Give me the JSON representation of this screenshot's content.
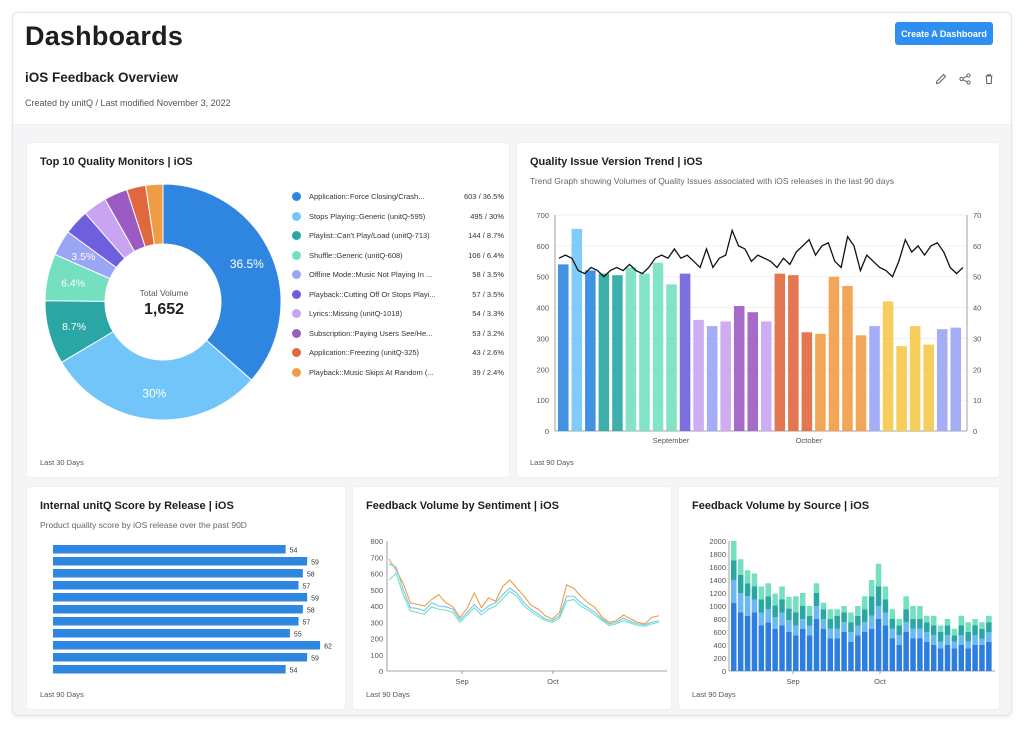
{
  "header": {
    "title": "Dashboards",
    "create_button": "Create A Dashboard",
    "dashboard_name": "iOS Feedback Overview",
    "created": "Created by unitQ / Last modified November 3, 2022"
  },
  "colors": {
    "accent": "#2e8ff0",
    "series": [
      "#2e86e0",
      "#72c5f8",
      "#2aa6a4",
      "#74e0c0",
      "#9aa5f5",
      "#6d5fde",
      "#c9a4f2",
      "#9c5bc2",
      "#e0683f",
      "#ef9d45"
    ]
  },
  "cards": {
    "top10": {
      "title": "Top 10 Quality Monitors | iOS",
      "center_label": "Total Volume",
      "center_value": "1,652",
      "footer": "Last 30 Days",
      "items": [
        {
          "label": "Application::Force Closing/Crash...",
          "value": "603 / 36.5%",
          "color": "#2e86e0"
        },
        {
          "label": "Stops Playing::Generic (unitQ-595)",
          "value": "495 / 30%",
          "color": "#72c5f8"
        },
        {
          "label": "Playlist::Can't Play/Load (unitQ-713)",
          "value": "144 / 8.7%",
          "color": "#2aa6a4"
        },
        {
          "label": "Shuffle::Generic (unitQ-608)",
          "value": "106 / 6.4%",
          "color": "#74e0c0"
        },
        {
          "label": "Offline Mode::Music Not Playing In ...",
          "value": "58 / 3.5%",
          "color": "#9aa5f5"
        },
        {
          "label": "Playback::Cutting Off Or Stops Playi...",
          "value": "57 / 3.5%",
          "color": "#6d5fde"
        },
        {
          "label": "Lyrics::Missing (unitQ-1018)",
          "value": "54 / 3.3%",
          "color": "#c9a4f2"
        },
        {
          "label": "Subscription::Paying Users See/He...",
          "value": "53 / 3.2%",
          "color": "#9c5bc2"
        },
        {
          "label": "Application::Freezing (unitQ-325)",
          "value": "43 / 2.6%",
          "color": "#e0683f"
        },
        {
          "label": "Playback::Music Skips At Random (...",
          "value": "39 / 2.4%",
          "color": "#ef9d45"
        }
      ],
      "slice_labels": [
        "36.5%",
        "30%",
        "8.7%",
        "6.4%",
        "3.5%"
      ]
    },
    "trend": {
      "title": "Quality Issue Version Trend | iOS",
      "subtitle": "Trend Graph showing Volumes of Quality Issues associated with iOS releases in the last 90 days",
      "footer": "Last 90 Days",
      "x_labels": [
        "September",
        "October"
      ]
    },
    "score": {
      "title": "Internal unitQ Score by Release | iOS",
      "subtitle": "Product quality score by iOS release over the past 90D",
      "footer": "Last 90 Days"
    },
    "sentiment": {
      "title": "Feedback Volume by Sentiment | iOS",
      "footer": "Last 90 Days",
      "x_labels": [
        "Sep",
        "Oct"
      ]
    },
    "source": {
      "title": "Feedback Volume by Source | iOS",
      "footer": "Last 90 Days",
      "x_labels": [
        "Sep",
        "Oct"
      ]
    }
  },
  "chart_data": [
    {
      "type": "pie",
      "title": "Top 10 Quality Monitors | iOS",
      "categories": [
        "Application::Force Closing/Crash...",
        "Stops Playing::Generic (unitQ-595)",
        "Playlist::Can't Play/Load (unitQ-713)",
        "Shuffle::Generic (unitQ-608)",
        "Offline Mode::Music Not Playing In ...",
        "Playback::Cutting Off Or Stops Playi...",
        "Lyrics::Missing (unitQ-1018)",
        "Subscription::Paying Users See/He...",
        "Application::Freezing (unitQ-325)",
        "Playback::Music Skips At Random (..."
      ],
      "values": [
        603,
        495,
        144,
        106,
        58,
        57,
        54,
        53,
        43,
        39
      ]
    },
    {
      "type": "bar",
      "title": "Quality Issue Version Trend | iOS",
      "ylim": [
        0,
        700
      ],
      "y2lim": [
        0,
        70
      ],
      "bars": [
        {
          "v": 540,
          "c": "#2e86e0"
        },
        {
          "v": 655,
          "c": "#72c5f8"
        },
        {
          "v": 520,
          "c": "#2e86e0"
        },
        {
          "v": 510,
          "c": "#2aa6a4"
        },
        {
          "v": 505,
          "c": "#2aa6a4"
        },
        {
          "v": 530,
          "c": "#74e0c0"
        },
        {
          "v": 510,
          "c": "#74e0c0"
        },
        {
          "v": 545,
          "c": "#74e0c0"
        },
        {
          "v": 475,
          "c": "#74e0c0"
        },
        {
          "v": 510,
          "c": "#6d5fde"
        },
        {
          "v": 360,
          "c": "#c9a4f2"
        },
        {
          "v": 340,
          "c": "#9aa5f5"
        },
        {
          "v": 355,
          "c": "#c9a4f2"
        },
        {
          "v": 405,
          "c": "#9c5bc2"
        },
        {
          "v": 385,
          "c": "#9c5bc2"
        },
        {
          "v": 355,
          "c": "#c9a4f2"
        },
        {
          "v": 510,
          "c": "#e0683f"
        },
        {
          "v": 505,
          "c": "#e0683f"
        },
        {
          "v": 320,
          "c": "#e0683f"
        },
        {
          "v": 315,
          "c": "#ef9d45"
        },
        {
          "v": 500,
          "c": "#ef9d45"
        },
        {
          "v": 470,
          "c": "#ef9d45"
        },
        {
          "v": 310,
          "c": "#ef9d45"
        },
        {
          "v": 340,
          "c": "#9aa5f5"
        },
        {
          "v": 420,
          "c": "#f5c94a"
        },
        {
          "v": 275,
          "c": "#f5c94a"
        },
        {
          "v": 340,
          "c": "#f5c94a"
        },
        {
          "v": 280,
          "c": "#f5c94a"
        },
        {
          "v": 330,
          "c": "#9aa5f5"
        },
        {
          "v": 335,
          "c": "#9aa5f5"
        }
      ],
      "line": [
        56,
        57,
        56,
        52,
        51,
        53,
        52,
        50,
        52,
        53,
        52,
        54,
        52,
        51,
        53,
        56,
        57,
        56,
        59,
        56,
        57,
        55,
        53,
        59,
        53,
        56,
        57,
        65,
        60,
        59,
        55,
        57,
        56,
        55,
        53,
        56,
        54,
        58,
        60,
        62,
        57,
        60,
        61,
        55,
        53,
        63,
        60,
        52,
        57,
        55,
        53,
        52,
        50,
        55,
        62,
        58,
        60,
        57,
        60,
        61,
        58,
        53,
        51,
        53
      ]
    },
    {
      "type": "bar",
      "title": "Internal unitQ Score by Release | iOS",
      "values": [
        54,
        59,
        58,
        57,
        59,
        58,
        57,
        55,
        62,
        59,
        54
      ],
      "xlim": [
        0,
        65
      ]
    },
    {
      "type": "line",
      "title": "Feedback Volume by Sentiment | iOS",
      "ylim": [
        0,
        800
      ],
      "series": [
        {
          "color": "#ef9d45",
          "values": [
            690,
            620,
            540,
            420,
            410,
            400,
            440,
            470,
            420,
            395,
            330,
            385,
            480,
            390,
            450,
            430,
            520,
            560,
            510,
            460,
            405,
            380,
            340,
            320,
            360,
            530,
            510,
            460,
            420,
            390,
            330,
            300,
            310,
            345,
            320,
            300,
            290,
            330,
            340
          ]
        },
        {
          "color": "#72c5f8",
          "values": [
            660,
            640,
            500,
            390,
            385,
            370,
            420,
            400,
            395,
            380,
            315,
            360,
            410,
            365,
            400,
            420,
            470,
            510,
            480,
            420,
            380,
            350,
            320,
            310,
            340,
            460,
            460,
            420,
            390,
            360,
            320,
            290,
            300,
            325,
            305,
            290,
            285,
            300,
            310
          ]
        },
        {
          "color": "#74e0c0",
          "values": [
            560,
            600,
            470,
            370,
            360,
            350,
            395,
            380,
            375,
            360,
            300,
            345,
            390,
            345,
            380,
            400,
            445,
            490,
            460,
            400,
            365,
            335,
            310,
            300,
            325,
            430,
            440,
            400,
            375,
            345,
            310,
            280,
            290,
            310,
            295,
            280,
            275,
            290,
            300
          ]
        }
      ]
    },
    {
      "type": "bar",
      "title": "Feedback Volume by Source | iOS",
      "ylim": [
        0,
        2000
      ],
      "stacks": [
        {
          "s": [
            1050,
            350,
            300,
            300
          ]
        },
        {
          "s": [
            900,
            300,
            280,
            240
          ]
        },
        {
          "s": [
            850,
            300,
            200,
            200
          ]
        },
        {
          "s": [
            900,
            200,
            200,
            200
          ]
        },
        {
          "s": [
            700,
            200,
            200,
            200
          ]
        },
        {
          "s": [
            750,
            200,
            200,
            200
          ]
        },
        {
          "s": [
            650,
            180,
            180,
            180
          ]
        },
        {
          "s": [
            700,
            200,
            200,
            200
          ]
        },
        {
          "s": [
            600,
            180,
            180,
            180
          ]
        },
        {
          "s": [
            550,
            150,
            200,
            250
          ]
        },
        {
          "s": [
            650,
            150,
            200,
            200
          ]
        },
        {
          "s": [
            550,
            150,
            150,
            150
          ]
        },
        {
          "s": [
            800,
            200,
            200,
            150
          ]
        },
        {
          "s": [
            650,
            150,
            150,
            100
          ]
        },
        {
          "s": [
            500,
            150,
            150,
            150
          ]
        },
        {
          "s": [
            500,
            150,
            200,
            100
          ]
        },
        {
          "s": [
            600,
            150,
            150,
            100
          ]
        },
        {
          "s": [
            450,
            150,
            150,
            150
          ]
        },
        {
          "s": [
            550,
            150,
            150,
            150
          ]
        },
        {
          "s": [
            600,
            150,
            200,
            200
          ]
        },
        {
          "s": [
            650,
            200,
            300,
            250
          ]
        },
        {
          "s": [
            800,
            200,
            300,
            350
          ]
        },
        {
          "s": [
            700,
            200,
            200,
            200
          ]
        },
        {
          "s": [
            500,
            150,
            150,
            150
          ]
        },
        {
          "s": [
            400,
            150,
            150,
            100
          ]
        },
        {
          "s": [
            600,
            150,
            200,
            200
          ]
        },
        {
          "s": [
            500,
            150,
            150,
            200
          ]
        },
        {
          "s": [
            500,
            150,
            150,
            200
          ]
        },
        {
          "s": [
            450,
            150,
            150,
            100
          ]
        },
        {
          "s": [
            400,
            150,
            150,
            150
          ]
        },
        {
          "s": [
            350,
            100,
            150,
            100
          ]
        },
        {
          "s": [
            400,
            150,
            150,
            100
          ]
        },
        {
          "s": [
            350,
            100,
            100,
            100
          ]
        },
        {
          "s": [
            400,
            150,
            150,
            150
          ]
        },
        {
          "s": [
            350,
            100,
            150,
            150
          ]
        },
        {
          "s": [
            400,
            150,
            150,
            100
          ]
        },
        {
          "s": [
            400,
            100,
            150,
            100
          ]
        },
        {
          "s": [
            450,
            150,
            150,
            100
          ]
        }
      ]
    }
  ]
}
